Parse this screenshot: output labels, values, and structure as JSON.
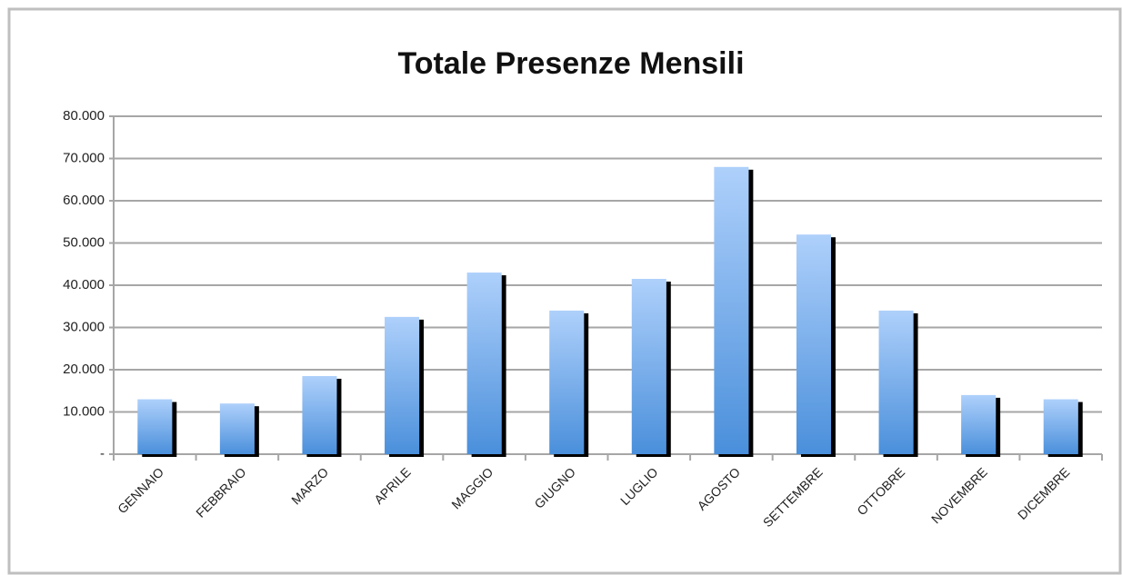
{
  "chart_data": {
    "type": "bar",
    "title": "Totale Presenze Mensili",
    "categories": [
      "GENNAIO",
      "FEBBRAIO",
      "MARZO",
      "APRILE",
      "MAGGIO",
      "GIUGNO",
      "LUGLIO",
      "AGOSTO",
      "SETTEMBRE",
      "OTTOBRE",
      "NOVEMBRE",
      "DICEMBRE"
    ],
    "values": [
      13000,
      12000,
      18500,
      32500,
      43000,
      34000,
      41500,
      68000,
      52000,
      34000,
      14000,
      13000
    ],
    "color": "#5b9be0",
    "ylim": [
      0,
      80000
    ],
    "yticks": [
      {
        "value": 0,
        "label": "-"
      },
      {
        "value": 10000,
        "label": "10.000"
      },
      {
        "value": 20000,
        "label": "20.000"
      },
      {
        "value": 30000,
        "label": "30.000"
      },
      {
        "value": 40000,
        "label": "40.000"
      },
      {
        "value": 50000,
        "label": "50.000"
      },
      {
        "value": 60000,
        "label": "60.000"
      },
      {
        "value": 70000,
        "label": "70.000"
      },
      {
        "value": 80000,
        "label": "80.000"
      }
    ],
    "grid": true
  }
}
